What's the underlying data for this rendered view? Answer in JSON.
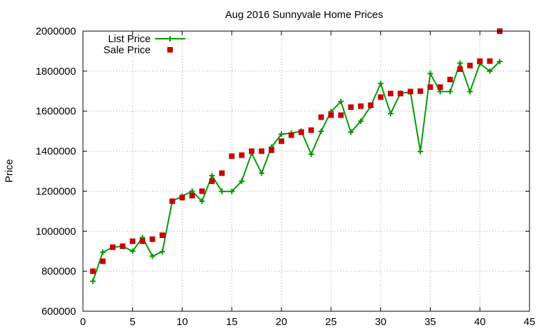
{
  "chart_data": {
    "type": "line",
    "title": "Aug 2016 Sunnyvale Home Prices",
    "xlabel": "",
    "ylabel": "Price",
    "xlim": [
      0,
      45
    ],
    "ylim": [
      600000,
      2000000
    ],
    "x_ticks": [
      0,
      5,
      10,
      15,
      20,
      25,
      30,
      35,
      40,
      45
    ],
    "y_ticks": [
      600000,
      800000,
      1000000,
      1200000,
      1400000,
      1600000,
      1800000,
      2000000
    ],
    "grid": true,
    "legend_position": "top-left",
    "series": [
      {
        "name": "List Price",
        "style": "line-plus",
        "color": "#009900",
        "points": [
          [
            1,
            750000
          ],
          [
            2,
            895000
          ],
          [
            3,
            920000
          ],
          [
            4,
            925000
          ],
          [
            5,
            900000
          ],
          [
            6,
            968000
          ],
          [
            7,
            875000
          ],
          [
            8,
            898000
          ],
          [
            9,
            1150000
          ],
          [
            10,
            1175000
          ],
          [
            11,
            1200000
          ],
          [
            12,
            1150000
          ],
          [
            13,
            1278000
          ],
          [
            14,
            1199000
          ],
          [
            15,
            1199000
          ],
          [
            16,
            1250000
          ],
          [
            17,
            1390000
          ],
          [
            18,
            1290000
          ],
          [
            19,
            1420000
          ],
          [
            20,
            1485000
          ],
          [
            21,
            1490000
          ],
          [
            22,
            1500000
          ],
          [
            23,
            1385000
          ],
          [
            24,
            1499000
          ],
          [
            25,
            1598000
          ],
          [
            26,
            1648000
          ],
          [
            27,
            1495000
          ],
          [
            28,
            1550000
          ],
          [
            29,
            1625000
          ],
          [
            30,
            1738000
          ],
          [
            31,
            1588000
          ],
          [
            32,
            1690000
          ],
          [
            33,
            1695000
          ],
          [
            34,
            1398000
          ],
          [
            35,
            1788000
          ],
          [
            36,
            1698000
          ],
          [
            37,
            1698000
          ],
          [
            38,
            1840000
          ],
          [
            39,
            1698000
          ],
          [
            40,
            1838000
          ],
          [
            41,
            1800000
          ],
          [
            42,
            1848000
          ]
        ]
      },
      {
        "name": "Sale Price",
        "style": "square",
        "color": "#cc0000",
        "points": [
          [
            1,
            800000
          ],
          [
            2,
            850000
          ],
          [
            3,
            920000
          ],
          [
            4,
            925000
          ],
          [
            5,
            950000
          ],
          [
            6,
            950000
          ],
          [
            7,
            960000
          ],
          [
            8,
            980000
          ],
          [
            9,
            1150000
          ],
          [
            10,
            1168000
          ],
          [
            11,
            1178000
          ],
          [
            12,
            1200000
          ],
          [
            13,
            1250000
          ],
          [
            14,
            1290000
          ],
          [
            15,
            1375000
          ],
          [
            16,
            1380000
          ],
          [
            17,
            1400000
          ],
          [
            18,
            1400000
          ],
          [
            19,
            1405000
          ],
          [
            20,
            1450000
          ],
          [
            21,
            1480000
          ],
          [
            22,
            1495000
          ],
          [
            23,
            1505000
          ],
          [
            24,
            1570000
          ],
          [
            25,
            1580000
          ],
          [
            26,
            1580000
          ],
          [
            27,
            1620000
          ],
          [
            28,
            1625000
          ],
          [
            29,
            1630000
          ],
          [
            30,
            1670000
          ],
          [
            31,
            1688000
          ],
          [
            32,
            1688000
          ],
          [
            33,
            1698000
          ],
          [
            34,
            1700000
          ],
          [
            35,
            1720000
          ],
          [
            36,
            1720000
          ],
          [
            37,
            1758000
          ],
          [
            38,
            1810000
          ],
          [
            39,
            1828000
          ],
          [
            40,
            1850000
          ],
          [
            41,
            1850000
          ],
          [
            42,
            2000000
          ]
        ]
      }
    ]
  }
}
